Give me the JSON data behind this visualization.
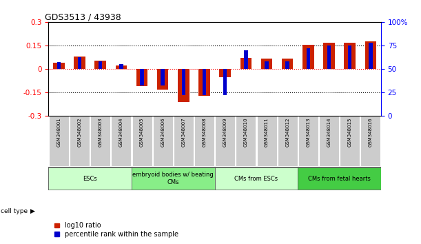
{
  "title": "GDS3513 / 43938",
  "samples": [
    "GSM348001",
    "GSM348002",
    "GSM348003",
    "GSM348004",
    "GSM348005",
    "GSM348006",
    "GSM348007",
    "GSM348008",
    "GSM348009",
    "GSM348010",
    "GSM348011",
    "GSM348012",
    "GSM348013",
    "GSM348014",
    "GSM348015",
    "GSM348016"
  ],
  "log10_ratio": [
    0.04,
    0.08,
    0.05,
    0.02,
    -0.11,
    -0.135,
    -0.215,
    -0.175,
    -0.055,
    0.07,
    0.065,
    0.065,
    0.155,
    0.165,
    0.165,
    0.175
  ],
  "percentile_rank": [
    57,
    62,
    58,
    55,
    32,
    32,
    22,
    22,
    22,
    70,
    58,
    58,
    72,
    75,
    75,
    78
  ],
  "ylim_left": [
    -0.3,
    0.3
  ],
  "ylim_right": [
    0,
    100
  ],
  "yticks_left": [
    -0.3,
    -0.15,
    0.0,
    0.15,
    0.3
  ],
  "yticks_right": [
    0,
    25,
    50,
    75,
    100
  ],
  "ytick_labels_right": [
    "0",
    "25",
    "50",
    "75",
    "100%"
  ],
  "hlines_dotted": [
    -0.15,
    0.15
  ],
  "bar_color_red": "#cc2200",
  "bar_color_blue": "#0000cc",
  "cell_type_groups": [
    {
      "label": "ESCs",
      "start": 0,
      "end": 3,
      "color": "#ccffcc"
    },
    {
      "label": "embryoid bodies w/ beating\nCMs",
      "start": 4,
      "end": 7,
      "color": "#88ee88"
    },
    {
      "label": "CMs from ESCs",
      "start": 8,
      "end": 11,
      "color": "#ccffcc"
    },
    {
      "label": "CMs from fetal hearts",
      "start": 12,
      "end": 15,
      "color": "#44cc44"
    }
  ],
  "xlabel_cell_type": "cell type",
  "legend_red": "log10 ratio",
  "legend_blue": "percentile rank within the sample",
  "background_color": "#ffffff",
  "sample_box_color": "#cccccc"
}
